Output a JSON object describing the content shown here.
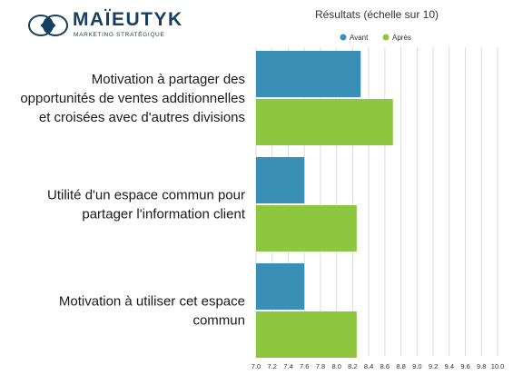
{
  "logo": {
    "name": "MAÏEUTYK",
    "tagline": "MARKETING STRATÉGIQUE"
  },
  "colors": {
    "avant": "#3a8fb7",
    "apres": "#8dc63f",
    "grid": "#dddddd",
    "brand": "#173f5f"
  },
  "chart_data": {
    "type": "bar",
    "orientation": "horizontal",
    "title": "Résultats (échelle sur 10)",
    "xlabel": "",
    "ylabel": "",
    "xlim": [
      7.0,
      10.0
    ],
    "grid": true,
    "legend_position": "top",
    "categories": [
      [
        "Motivation à partager des",
        "opportunités de ventes additionnelles",
        "et croisées avec d'autres divisions"
      ],
      [
        "Utilité d'un espace commun pour",
        "partager l'information client"
      ],
      [
        "Motivation à utiliser cet espace",
        "commun"
      ]
    ],
    "series": [
      {
        "name": "Avant",
        "color": "#3a8fb7",
        "values": [
          8.3,
          7.6,
          7.6
        ]
      },
      {
        "name": "Après",
        "color": "#8dc63f",
        "values": [
          8.7,
          8.25,
          8.25
        ]
      }
    ],
    "ticks": [
      "7.0",
      "7.2",
      "7.4",
      "7.6",
      "7.8",
      "8.0",
      "8.2",
      "8.4",
      "8.6",
      "8.8",
      "9.0",
      "9.2",
      "9.4",
      "9.6",
      "9.8",
      "10.0"
    ]
  }
}
